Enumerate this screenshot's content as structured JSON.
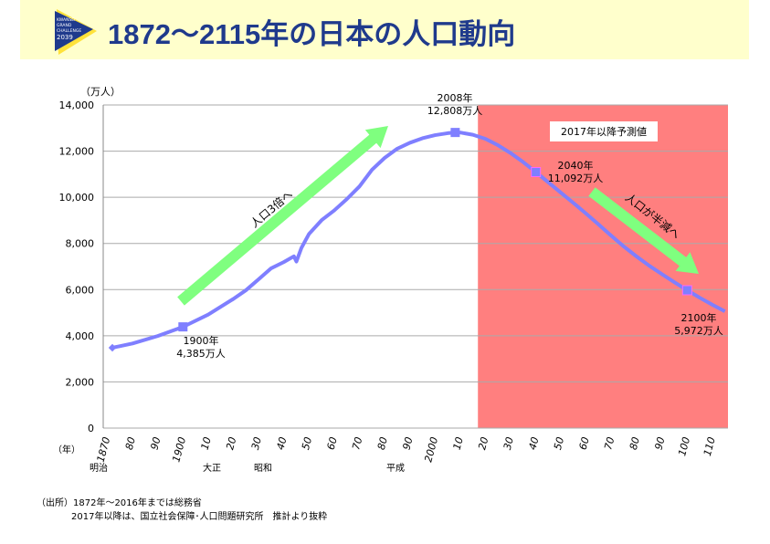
{
  "header": {
    "title": "1872～2115年の日本の人口動向",
    "logo_text": [
      "KWANSEI",
      "GRAND",
      "CHALLENGE",
      "2039"
    ]
  },
  "colors": {
    "title": "#1F3A8C",
    "banner": "#FFFFCC",
    "line": "#7F7FFF",
    "forecast_region": "#FF7F7F",
    "arrow": "#7FFF7F"
  },
  "chart_data": {
    "type": "line",
    "ylabel": "（万人）",
    "xlabel": "（年）",
    "ylim": [
      0,
      14000
    ],
    "xlim": [
      1870,
      2115
    ],
    "grid": true,
    "yticks": [
      "0",
      "2,000",
      "4,000",
      "6,000",
      "8,000",
      "10,000",
      "12,000",
      "14,000"
    ],
    "ytick_values": [
      0,
      2000,
      4000,
      6000,
      8000,
      10000,
      12000,
      14000
    ],
    "xticks": [
      "1870",
      "80",
      "90",
      "1900",
      "10",
      "20",
      "30",
      "40",
      "50",
      "60",
      "70",
      "80",
      "90",
      "2000",
      "10",
      "20",
      "30",
      "40",
      "50",
      "60",
      "70",
      "80",
      "90",
      "100",
      "110"
    ],
    "eras": [
      {
        "label": "明治",
        "year": 1870
      },
      {
        "label": "大正",
        "year": 1912
      },
      {
        "label": "昭和",
        "year": 1927
      },
      {
        "label": "平成",
        "year": 1989
      }
    ],
    "forecast_start": 2017,
    "forecast_label": "2017年以降予測値",
    "series": [
      {
        "x": [
          1872,
          1880,
          1890,
          1900,
          1910,
          1920,
          1925,
          1930,
          1935,
          1940,
          1944,
          1945,
          1947,
          1950,
          1955,
          1960,
          1965,
          1970,
          1975,
          1980,
          1985,
          1990,
          1995,
          2000,
          2005,
          2008,
          2010,
          2015,
          2020,
          2025,
          2030,
          2035,
          2040,
          2045,
          2050,
          2055,
          2060,
          2065,
          2070,
          2075,
          2080,
          2085,
          2090,
          2095,
          2100,
          2105,
          2110,
          2115
        ],
        "y": [
          3481,
          3665,
          3990,
          4385,
          4918,
          5596,
          5974,
          6445,
          6925,
          7193,
          7443,
          7215,
          7810,
          8412,
          9008,
          9430,
          9921,
          10467,
          11194,
          11706,
          12105,
          12361,
          12557,
          12693,
          12777,
          12808,
          12806,
          12709,
          12533,
          12254,
          11913,
          11522,
          11092,
          10642,
          10192,
          9744,
          9284,
          8808,
          8323,
          7856,
          7430,
          7032,
          6668,
          6316,
          5972,
          5648,
          5343,
          5056
        ]
      }
    ],
    "markers": [
      {
        "x": 1872,
        "y": 3481
      },
      {
        "x": 1900,
        "y": 4385
      },
      {
        "x": 2008,
        "y": 12808
      },
      {
        "x": 2040,
        "y": 11092
      },
      {
        "x": 2100,
        "y": 5972
      }
    ],
    "annotations": [
      {
        "year_label": "1900年",
        "value_label": "4,385万人"
      },
      {
        "year_label": "2008年",
        "value_label": "12,808万人"
      },
      {
        "year_label": "2040年",
        "value_label": "11,092万人"
      },
      {
        "year_label": "2100年",
        "value_label": "5,972万人"
      },
      {
        "text": "人口3倍へ"
      },
      {
        "text": "人口が半減へ"
      }
    ]
  },
  "source": {
    "line1": "（出所）1872年～2016年までは総務省",
    "line2": "2017年以降は、国立社会保障･人口問題研究所　推計より抜粋"
  }
}
